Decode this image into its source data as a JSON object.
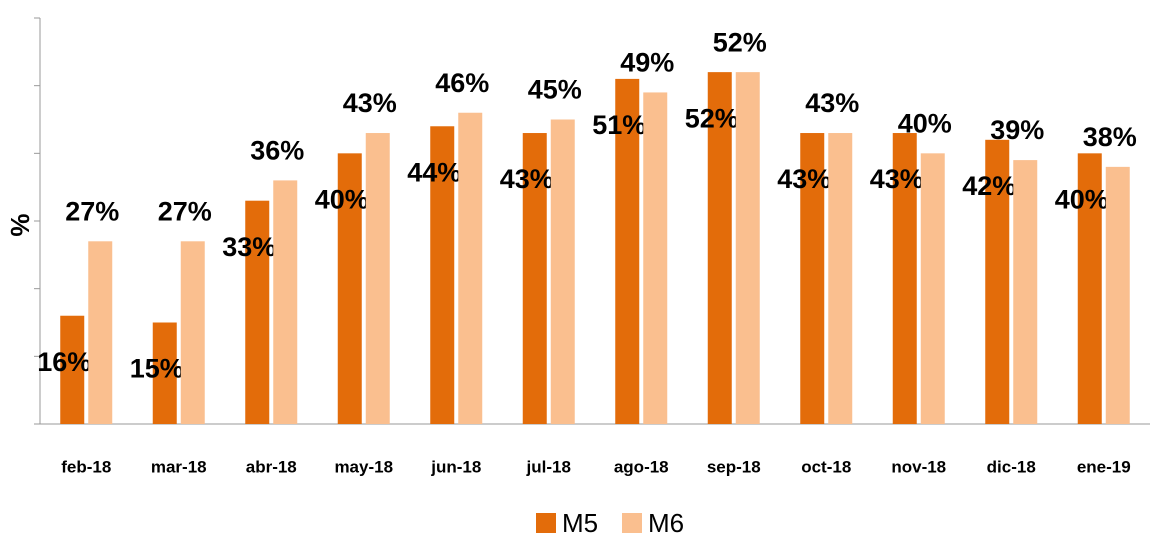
{
  "chart_data": {
    "type": "bar",
    "y_label": "%",
    "categories": [
      "feb-18",
      "mar-18",
      "abr-18",
      "may-18",
      "jun-18",
      "jul-18",
      "ago-18",
      "sep-18",
      "oct-18",
      "nov-18",
      "dic-18",
      "ene-19"
    ],
    "series": [
      {
        "name": "M5",
        "color": "#e36c0a",
        "values": [
          16,
          15,
          33,
          40,
          44,
          43,
          51,
          52,
          43,
          43,
          42,
          40
        ],
        "value_labels": [
          "16%",
          "15%",
          "33%",
          "40%",
          "44%",
          "43%",
          "51%",
          "52%",
          "43%",
          "43%",
          "42%",
          "40%"
        ]
      },
      {
        "name": "M6",
        "color": "#fabf8f",
        "values": [
          27,
          27,
          36,
          43,
          46,
          45,
          49,
          52,
          43,
          40,
          39,
          38
        ],
        "value_labels": [
          "27%",
          "27%",
          "36%",
          "43%",
          "46%",
          "45%",
          "49%",
          "52%",
          "43%",
          "40%",
          "39%",
          "38%"
        ]
      }
    ],
    "ylim": [
      0,
      60
    ],
    "yticks": [
      0,
      10,
      20,
      30,
      40,
      50,
      60
    ],
    "grid": false,
    "legend": "bottom"
  }
}
